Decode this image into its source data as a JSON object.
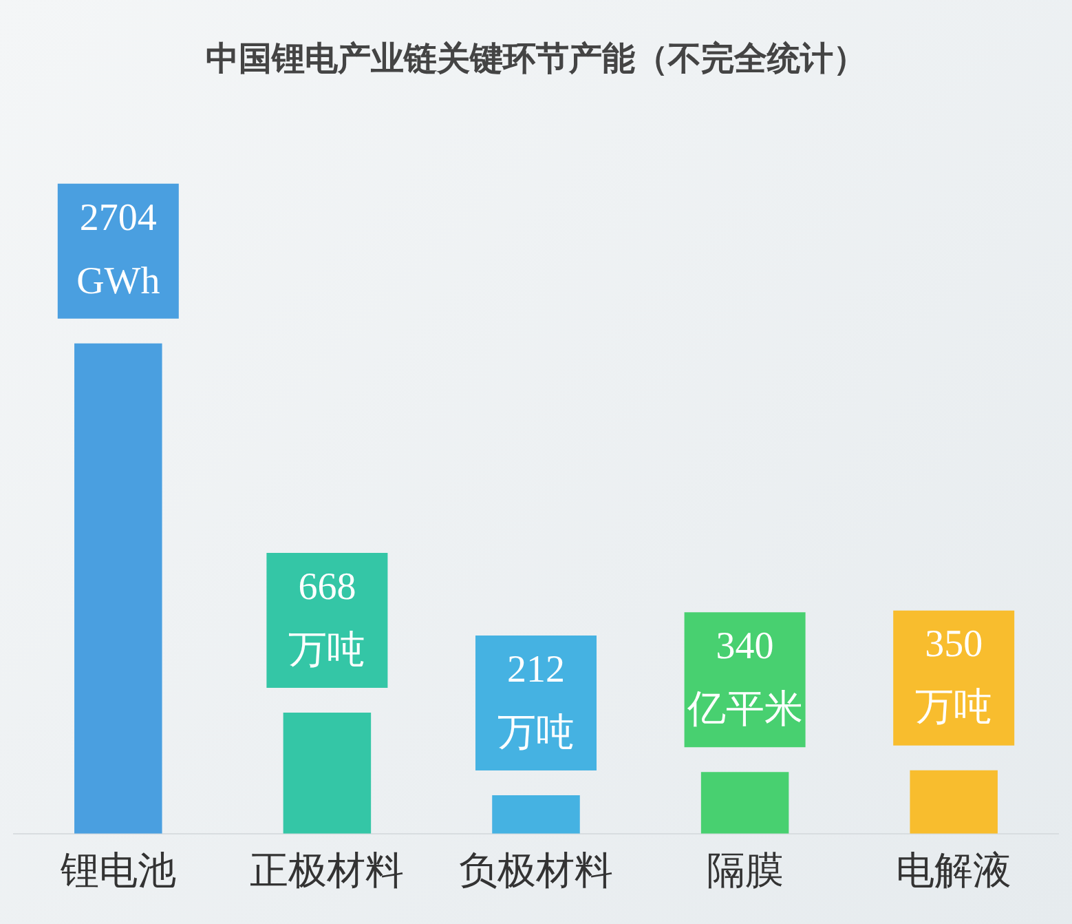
{
  "chart_data": {
    "type": "bar",
    "title": "中国锂电产业链关键环节产能（不完全统计）",
    "categories": [
      "锂电池",
      "正极材料",
      "负极材料",
      "隔膜",
      "电解液"
    ],
    "values": [
      2704,
      668,
      212,
      340,
      350
    ],
    "colors": [
      "#4a9fe0",
      "#34c6a6",
      "#45b2e2",
      "#48d070",
      "#f8bd2e"
    ],
    "value_labels": [
      "2704\nGWh",
      "668\n万吨",
      "212\n万吨",
      "340\n亿平米",
      "350\n万吨"
    ],
    "grid": false,
    "legend": false
  }
}
